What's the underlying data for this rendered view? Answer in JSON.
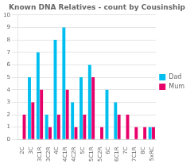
{
  "chart_data": {
    "type": "bar",
    "title": "Known DNA Relatives - count by Cousinship",
    "categories": [
      "2C",
      "3C",
      "3C1R",
      "3C2R",
      "4C",
      "4C1R",
      "4C2R",
      "5C",
      "5C1R",
      "5C2R",
      "6C",
      "6C1R",
      "7C",
      "7C1R",
      "8C",
      "5xRC"
    ],
    "series": [
      {
        "name": "Dad",
        "color": "#00bfee",
        "values": [
          0,
          5,
          7,
          2,
          8,
          9,
          3,
          5,
          6,
          0,
          4,
          3,
          0,
          0,
          0,
          1
        ]
      },
      {
        "name": "Mum",
        "color": "#e8006a",
        "values": [
          2,
          3,
          4,
          1,
          2,
          4,
          1,
          2,
          5,
          1,
          0,
          2,
          2,
          1,
          1,
          1
        ]
      }
    ],
    "ylim": [
      0,
      10
    ],
    "yticks": [
      0,
      1,
      2,
      3,
      4,
      5,
      6,
      7,
      8,
      9,
      10
    ],
    "grid": true,
    "legend": "right"
  }
}
